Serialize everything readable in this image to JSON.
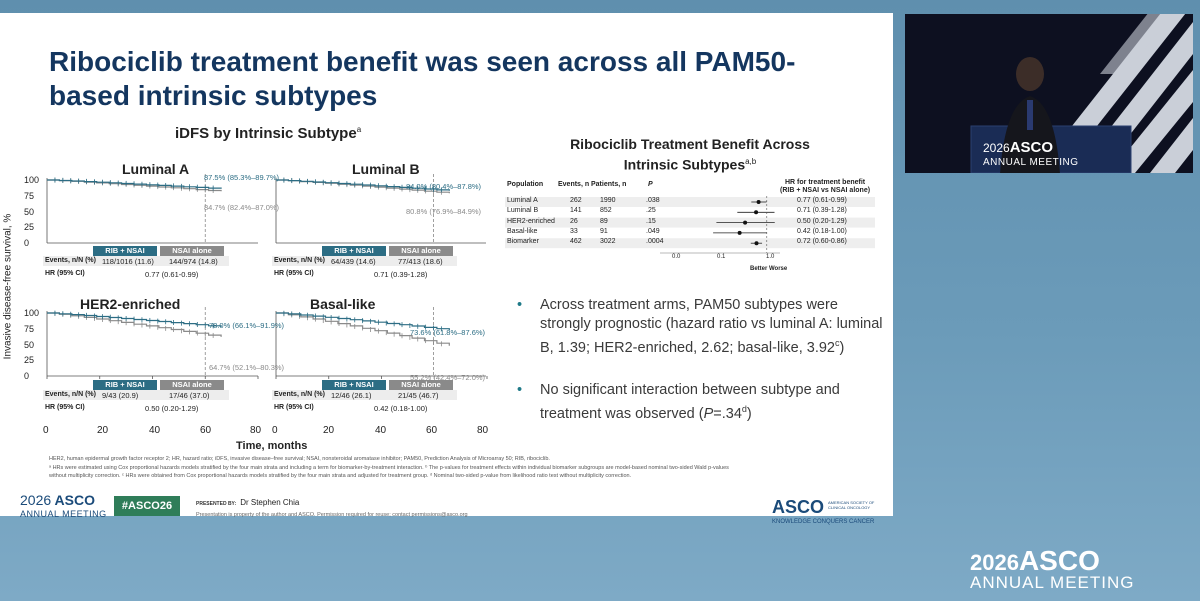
{
  "slide": {
    "title": "Ribociclib treatment benefit was seen across all PAM50-based intrinsic subtypes",
    "km_title": "iDFS by Intrinsic Subtype",
    "km_title_sup": "a",
    "y_axis_label": "Invasive disease-free survival, %",
    "x_axis_label": "Time, months",
    "panels": [
      {
        "name": "Luminal A",
        "rib_ann": "87.5% (85.3%–89.7%)",
        "nsai_ann": "84.7% (82.4%–87.0%)",
        "rib_events": "118/1016 (11.6)",
        "nsai_events": "144/974 (14.8)",
        "hr": "0.77 (0.61-0.99)"
      },
      {
        "name": "Luminal B",
        "rib_ann": "84.0% (80.4%–87.8%)",
        "nsai_ann": "80.8% (76.9%–84.9%)",
        "rib_events": "64/439 (14.6)",
        "nsai_events": "77/413 (18.6)",
        "hr": "0.71 (0.39-1.28)"
      },
      {
        "name": "HER2-enriched",
        "rib_ann": "78.0% (66.1%–91.9%)",
        "nsai_ann": "64.7% (52.1%–80.3%)",
        "rib_events": "9/43 (20.9)",
        "nsai_events": "17/46 (37.0)",
        "hr": "0.50 (0.20-1.29)"
      },
      {
        "name": "Basal-like",
        "rib_ann": "73.6% (61.8%–87.6%)",
        "nsai_ann": "55.2% (42.4%–72.0%)",
        "rib_events": "12/46 (26.1)",
        "nsai_events": "21/45 (46.7)",
        "hr": "0.42 (0.18-1.00)"
      }
    ],
    "col_rib": "RIB + NSAI",
    "col_nsai": "NSAI alone",
    "row_events": "Events, n/N (%)",
    "row_hr": "HR (95% CI)",
    "y_ticks": [
      "100",
      "75",
      "50",
      "25",
      "0"
    ],
    "y_ticks_bottom": [
      "100",
      "75",
      "50",
      "25",
      "0"
    ],
    "x_ticks": [
      "0",
      "20",
      "40",
      "60",
      "80"
    ],
    "forest": {
      "title": "Ribociclib Treatment Benefit Across Intrinsic Subtypes",
      "title_sup": "a,b",
      "col_population": "Population",
      "col_events": "Events, n",
      "col_patients": "Patients, n",
      "col_p": "P",
      "col_hr": "HR for treatment benefit",
      "col_hr_sub": "(RIB + NSAI vs NSAI alone)",
      "rows": [
        {
          "pop": "Luminal A",
          "events": "262",
          "patients": "1990",
          "p": ".038",
          "hr": "0.77 (0.61-0.99)",
          "est": 0.77,
          "lo": 0.61,
          "hi": 0.99
        },
        {
          "pop": "Luminal B",
          "events": "141",
          "patients": "852",
          "p": ".25",
          "hr": "0.71 (0.39-1.28)",
          "est": 0.71,
          "lo": 0.39,
          "hi": 1.28
        },
        {
          "pop": "HER2-enriched",
          "events": "26",
          "patients": "89",
          "p": ".15",
          "hr": "0.50 (0.20-1.29)",
          "est": 0.5,
          "lo": 0.2,
          "hi": 1.29
        },
        {
          "pop": "Basal-like",
          "events": "33",
          "patients": "91",
          "p": ".049",
          "hr": "0.42 (0.18-1.00)",
          "est": 0.42,
          "lo": 0.18,
          "hi": 1.0
        },
        {
          "pop": "Biomarker",
          "events": "462",
          "patients": "3022",
          "p": ".0004",
          "hr": "0.72 (0.60-0.86)",
          "est": 0.72,
          "lo": 0.6,
          "hi": 0.86
        }
      ],
      "ticks": [
        "0.0",
        "0.1",
        "1.0"
      ],
      "better": "Better",
      "worse": "Worse"
    },
    "bullets": [
      {
        "text": "Across treatment arms, PAM50 subtypes were strongly prognostic (hazard ratio vs luminal A: luminal B, 1.39; HER2-enriched, 2.62; basal-like, 3.92",
        "sup": "c",
        "tail": ")"
      },
      {
        "text": "No significant interaction between subtype and treatment was observed (",
        "italic": "P",
        "tail": "=.34",
        "sup": "d",
        "tail2": ")"
      }
    ],
    "footnote1": "HER2, human epidermal growth factor receptor 2; HR, hazard ratio; iDFS, invasive disease–free survival; NSAI, nonsteroidal aromatase inhibitor; PAM50, Prediction Analysis of Microarray 50; RIB, ribociclib.",
    "footnote2": "ᵃ HRs were estimated using Cox proportional hazards models stratified by the four main strata and including a term for biomarker-by-treatment interaction. ᵇ The p-values for treatment effects within individual biomarker subgroups are model-based nominal two-sided Wald p-values",
    "footnote3": "without multiplicity correction. ᶜ HRs were obtained from Cox proportional hazards models stratified by the four main strata and adjusted for treatment group. ᵈ Nominal two-sided p-value from likelihood ratio test without multiplicity correction.",
    "footer_year": "2026",
    "footer_asco": "ASCO",
    "footer_meeting": "ANNUAL MEETING",
    "hashtag": "#ASCO26",
    "presented_by": "PRESENTED BY:",
    "presenter": "Dr Stephen Chia",
    "legal": "Presentation is property of the author and ASCO. Permission required for reuse; contact permissions@asco.org",
    "asco_logo": "ASCO",
    "asco_society": "AMERICAN SOCIETY OF CLINICAL ONCOLOGY",
    "asco_tagline": "KNOWLEDGE CONQUERS CANCER"
  },
  "video": {
    "backdrop_year": "2026",
    "backdrop_asco": "ASCO",
    "backdrop_meeting": "ANNUAL MEETING"
  },
  "brand": {
    "year": "2026",
    "asco": "ASCO",
    "meeting": "ANNUAL MEETING"
  },
  "colors": {
    "rib": "#2c6d84",
    "nsai": "#8a8a8a",
    "title": "#14365f",
    "brand": "#1b4b7a",
    "hashtag": "#2f7d59"
  }
}
